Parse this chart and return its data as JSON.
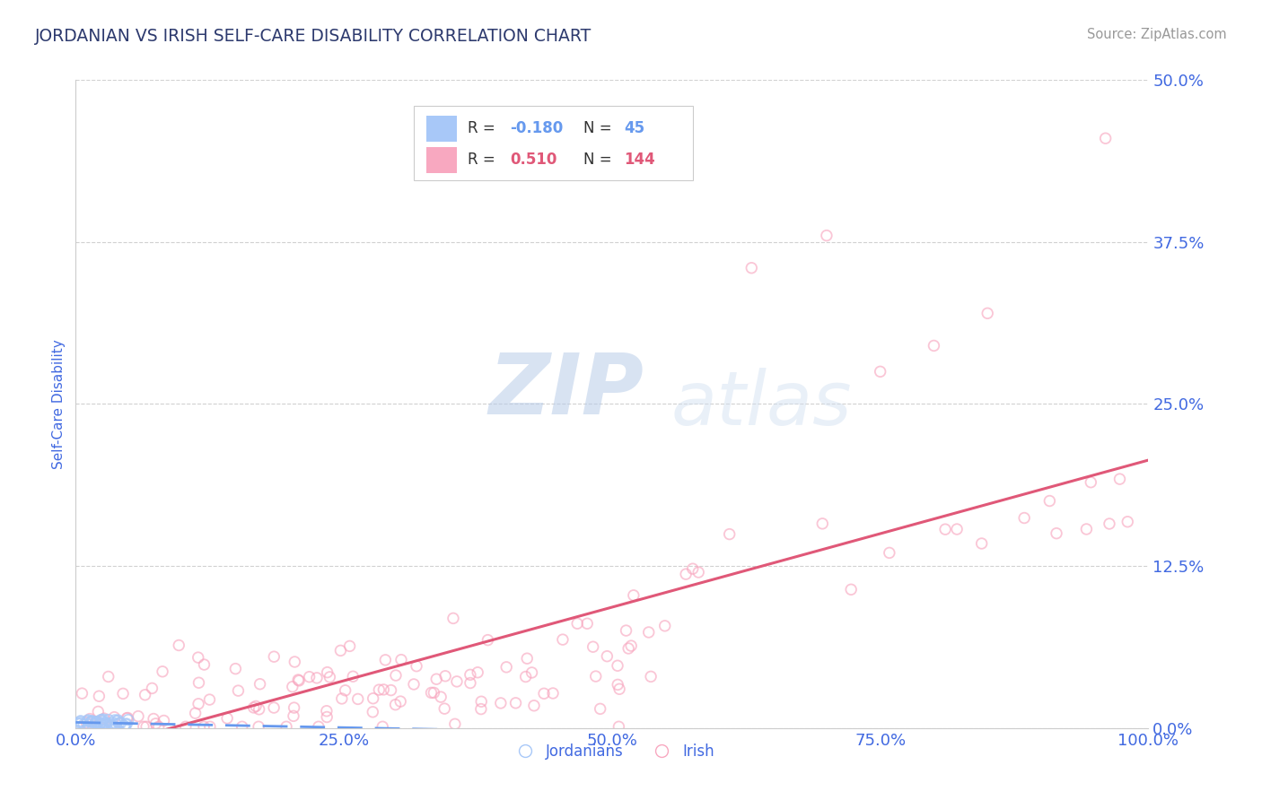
{
  "title": "JORDANIAN VS IRISH SELF-CARE DISABILITY CORRELATION CHART",
  "source_text": "Source: ZipAtlas.com",
  "ylabel": "Self-Care Disability",
  "watermark_zip": "ZIP",
  "watermark_atlas": "atlas",
  "title_color": "#2d3a6e",
  "axis_label_color": "#4169e1",
  "tick_color": "#4169e1",
  "source_color": "#999999",
  "background_color": "#ffffff",
  "color_jordanian": "#a8c8f8",
  "color_irish": "#f8a8c0",
  "line_color_jordanian": "#6699ee",
  "line_color_irish": "#e05878",
  "xlim": [
    0.0,
    1.0
  ],
  "ylim": [
    0.0,
    0.5
  ],
  "xticks": [
    0.0,
    0.25,
    0.5,
    0.75,
    1.0
  ],
  "xticklabels": [
    "0.0%",
    "25.0%",
    "50.0%",
    "75.0%",
    "100.0%"
  ],
  "yticks": [
    0.0,
    0.125,
    0.25,
    0.375,
    0.5
  ],
  "yticklabels": [
    "0.0%",
    "12.5%",
    "25.0%",
    "37.5%",
    "50.0%"
  ],
  "grid_color": "#cccccc",
  "r1": -0.18,
  "n1": 45,
  "r2": 0.51,
  "n2": 144
}
